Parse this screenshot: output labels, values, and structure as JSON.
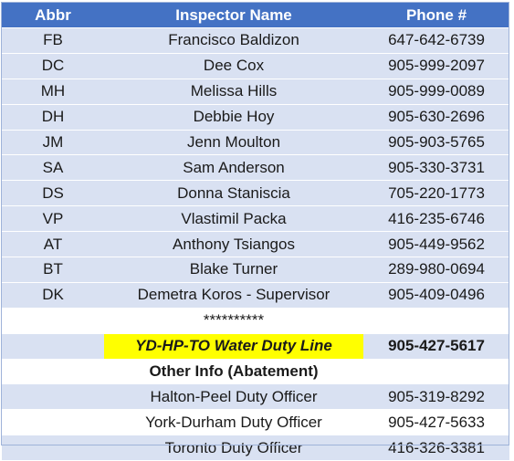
{
  "headers": {
    "abbr": "Abbr",
    "name": "Inspector Name",
    "phone": "Phone #"
  },
  "inspectors": [
    {
      "abbr": "FB",
      "name": "Francisco Baldizon",
      "phone": "647-642-6739"
    },
    {
      "abbr": "DC",
      "name": "Dee Cox",
      "phone": "905-999-2097"
    },
    {
      "abbr": "MH",
      "name": "Melissa Hills",
      "phone": "905-999-0089"
    },
    {
      "abbr": "DH",
      "name": "Debbie Hoy",
      "phone": "905-630-2696"
    },
    {
      "abbr": "JM",
      "name": "Jenn Moulton",
      "phone": "905-903-5765"
    },
    {
      "abbr": "SA",
      "name": "Sam Anderson",
      "phone": "905-330-3731"
    },
    {
      "abbr": "DS",
      "name": "Donna Staniscia",
      "phone": "705-220-1773"
    },
    {
      "abbr": "VP",
      "name": "Vlastimil Packa",
      "phone": "416-235-6746"
    },
    {
      "abbr": "AT",
      "name": "Anthony Tsiangos",
      "phone": "905-449-9562"
    },
    {
      "abbr": "BT",
      "name": "Blake Turner",
      "phone": "289-980-0694"
    },
    {
      "abbr": "DK",
      "name": "Demetra Koros - Supervisor",
      "phone": "905-409-0496"
    }
  ],
  "separator": "**********",
  "duty_line": {
    "name": "YD-HP-TO Water Duty Line",
    "phone": "905-427-5617"
  },
  "other_info": {
    "title": "Other Info (Abatement)",
    "rows": [
      {
        "name": "Halton-Peel Duty Officer",
        "phone": "905-319-8292"
      },
      {
        "name": "York-Durham Duty Officer",
        "phone": "905-427-5633"
      },
      {
        "name": "Toronto Duty Officer",
        "phone": "416-326-3381"
      }
    ]
  },
  "colors": {
    "header_bg": "#4472c4",
    "band_bg": "#d9e1f2",
    "highlight": "#ffff00"
  }
}
